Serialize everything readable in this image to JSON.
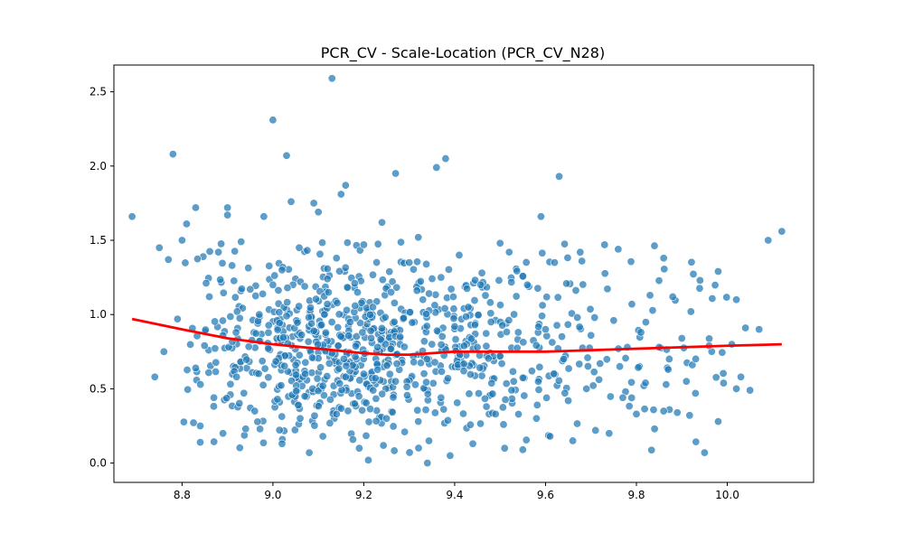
{
  "chart_data": {
    "type": "scatter",
    "title": "PCR_CV - Scale-Location (PCR_CV_N28)",
    "xlabel": "",
    "ylabel": "",
    "xlim": [
      8.65,
      10.19
    ],
    "ylim": [
      -0.13,
      2.68
    ],
    "x_ticks": [
      8.8,
      9.0,
      9.2,
      9.4,
      9.6,
      9.8,
      10.0
    ],
    "x_tick_labels": [
      "8.8",
      "9.0",
      "9.2",
      "9.4",
      "9.6",
      "9.8",
      "10.0"
    ],
    "y_ticks": [
      0.0,
      0.5,
      1.0,
      1.5,
      2.0,
      2.5
    ],
    "y_tick_labels": [
      "0.0",
      "0.5",
      "1.0",
      "1.5",
      "2.0",
      "2.5"
    ],
    "grid": false,
    "legend": "none",
    "colors": {
      "points": "#1f77b4",
      "trend": "#ff0000",
      "point_edge": "#ffffff"
    },
    "points": [
      [
        8.69,
        1.66
      ],
      [
        8.74,
        0.58
      ],
      [
        8.75,
        1.45
      ],
      [
        8.76,
        0.75
      ],
      [
        8.77,
        1.37
      ],
      [
        8.78,
        2.08
      ],
      [
        8.79,
        0.97
      ],
      [
        8.8,
        1.5
      ],
      [
        8.81,
        1.61
      ],
      [
        8.83,
        1.72
      ],
      [
        8.83,
        0.64
      ],
      [
        8.84,
        0.25
      ],
      [
        8.84,
        0.14
      ],
      [
        8.86,
        1.12
      ],
      [
        8.87,
        0.44
      ],
      [
        8.88,
        1.42
      ],
      [
        8.89,
        0.86
      ],
      [
        8.89,
        0.2
      ],
      [
        8.9,
        1.72
      ],
      [
        8.9,
        1.67
      ],
      [
        8.91,
        1.33
      ],
      [
        8.92,
        0.58
      ],
      [
        8.93,
        1.49
      ],
      [
        8.94,
        0.23
      ],
      [
        8.95,
        1.17
      ],
      [
        8.96,
        0.35
      ],
      [
        8.97,
        1.0
      ],
      [
        8.98,
        1.66
      ],
      [
        8.99,
        0.77
      ],
      [
        9.0,
        2.31
      ],
      [
        9.0,
        1.2
      ],
      [
        9.01,
        0.43
      ],
      [
        9.02,
        0.13
      ],
      [
        9.02,
        1.3
      ],
      [
        9.03,
        2.07
      ],
      [
        9.03,
        0.99
      ],
      [
        9.04,
        1.76
      ],
      [
        9.05,
        0.66
      ],
      [
        9.06,
        0.3
      ],
      [
        9.07,
        1.19
      ],
      [
        9.07,
        0.45
      ],
      [
        9.08,
        0.07
      ],
      [
        9.09,
        1.75
      ],
      [
        9.09,
        0.89
      ],
      [
        9.1,
        1.69
      ],
      [
        9.11,
        0.52
      ],
      [
        9.11,
        0.18
      ],
      [
        9.12,
        1.24
      ],
      [
        9.13,
        2.59
      ],
      [
        9.13,
        0.74
      ],
      [
        9.14,
        1.38
      ],
      [
        9.14,
        0.33
      ],
      [
        9.15,
        1.81
      ],
      [
        9.16,
        1.87
      ],
      [
        9.16,
        0.58
      ],
      [
        9.17,
        0.95
      ],
      [
        9.18,
        1.21
      ],
      [
        9.18,
        0.4
      ],
      [
        9.19,
        0.1
      ],
      [
        9.2,
        1.47
      ],
      [
        9.2,
        0.6
      ],
      [
        9.21,
        0.02
      ],
      [
        9.22,
        1.05
      ],
      [
        9.23,
        0.78
      ],
      [
        9.24,
        1.62
      ],
      [
        9.25,
        0.3
      ],
      [
        9.26,
        1.15
      ],
      [
        9.27,
        1.95
      ],
      [
        9.27,
        0.55
      ],
      [
        9.28,
        0.85
      ],
      [
        9.29,
        0.21
      ],
      [
        9.3,
        1.35
      ],
      [
        9.31,
        0.68
      ],
      [
        9.32,
        1.52
      ],
      [
        9.32,
        0.28
      ],
      [
        9.33,
        1.1
      ],
      [
        9.34,
        0.0
      ],
      [
        9.35,
        0.8
      ],
      [
        9.36,
        1.99
      ],
      [
        9.37,
        1.25
      ],
      [
        9.37,
        0.44
      ],
      [
        9.38,
        2.05
      ],
      [
        9.39,
        0.05
      ],
      [
        9.4,
        0.92
      ],
      [
        9.41,
        1.4
      ],
      [
        9.42,
        0.62
      ],
      [
        9.43,
        1.05
      ],
      [
        9.44,
        0.13
      ],
      [
        9.45,
        0.78
      ],
      [
        9.46,
        1.28
      ],
      [
        9.47,
        0.38
      ],
      [
        9.48,
        0.95
      ],
      [
        9.49,
        0.33
      ],
      [
        9.5,
        1.48
      ],
      [
        9.5,
        0.72
      ],
      [
        9.51,
        0.1
      ],
      [
        9.52,
        1.42
      ],
      [
        9.53,
        0.55
      ],
      [
        9.54,
        0.88
      ],
      [
        9.55,
        0.09
      ],
      [
        9.56,
        1.2
      ],
      [
        9.57,
        0.62
      ],
      [
        9.58,
        0.3
      ],
      [
        9.59,
        1.66
      ],
      [
        9.6,
        0.9
      ],
      [
        9.61,
        0.18
      ],
      [
        9.62,
        1.35
      ],
      [
        9.63,
        1.93
      ],
      [
        9.64,
        0.7
      ],
      [
        9.65,
        0.42
      ],
      [
        9.66,
        0.15
      ],
      [
        9.67,
        0.98
      ],
      [
        9.68,
        1.36
      ],
      [
        9.69,
        0.5
      ],
      [
        9.7,
        0.86
      ],
      [
        9.71,
        0.22
      ],
      [
        9.72,
        0.67
      ],
      [
        9.73,
        1.47
      ],
      [
        9.74,
        0.2
      ],
      [
        9.75,
        0.96
      ],
      [
        9.76,
        1.44
      ],
      [
        9.77,
        0.44
      ],
      [
        9.78,
        0.78
      ],
      [
        9.79,
        1.07
      ],
      [
        9.8,
        0.33
      ],
      [
        9.81,
        0.88
      ],
      [
        9.82,
        0.54
      ],
      [
        9.83,
        1.13
      ],
      [
        9.84,
        0.23
      ],
      [
        9.85,
        0.78
      ],
      [
        9.86,
        1.38
      ],
      [
        9.86,
        0.35
      ],
      [
        9.87,
        0.63
      ],
      [
        9.88,
        1.12
      ],
      [
        9.89,
        0.34
      ],
      [
        9.9,
        0.84
      ],
      [
        9.91,
        0.55
      ],
      [
        9.92,
        1.02
      ],
      [
        9.93,
        0.47
      ],
      [
        9.94,
        1.23
      ],
      [
        9.95,
        0.07
      ],
      [
        9.96,
        0.79
      ],
      [
        9.98,
        1.29
      ],
      [
        9.98,
        0.28
      ],
      [
        10.01,
        0.8
      ],
      [
        10.02,
        1.1
      ],
      [
        10.02,
        0.5
      ],
      [
        10.03,
        0.58
      ],
      [
        10.04,
        0.91
      ],
      [
        10.05,
        0.49
      ],
      [
        10.07,
        0.9
      ],
      [
        10.09,
        1.5
      ],
      [
        10.12,
        1.56
      ]
    ],
    "cloud_seed": 28,
    "cloud_point_count": 860,
    "trend_line": {
      "x": [
        8.69,
        8.8,
        8.9,
        9.0,
        9.1,
        9.2,
        9.25,
        9.3,
        9.4,
        9.5,
        9.6,
        9.7,
        9.8,
        9.9,
        10.0,
        10.12
      ],
      "y": [
        0.97,
        0.9,
        0.84,
        0.8,
        0.77,
        0.74,
        0.73,
        0.73,
        0.75,
        0.75,
        0.75,
        0.76,
        0.77,
        0.78,
        0.79,
        0.8
      ]
    }
  }
}
